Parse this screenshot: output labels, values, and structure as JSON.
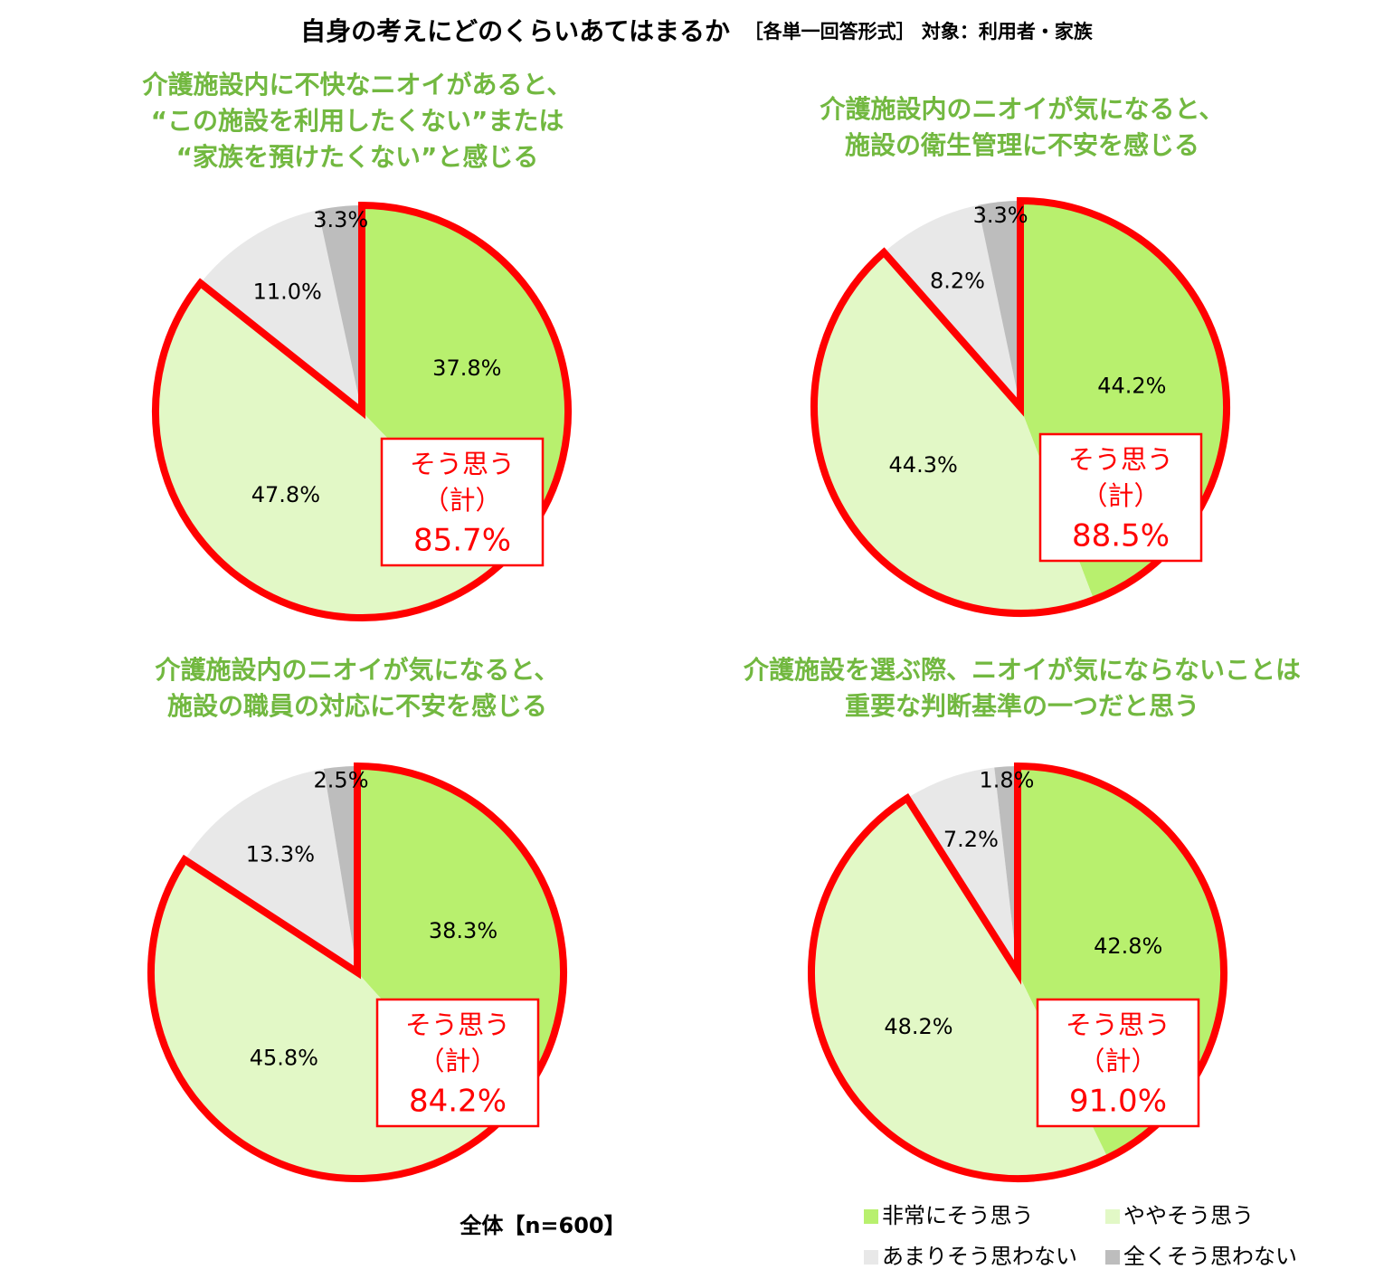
{
  "title": "自身の考えにどのくらいあてはまるか",
  "subtitle": "［各単一回答形式］ 対象：利用者・家族",
  "note": "全体【n=600】",
  "chart_data": [
    {
      "type": "pie",
      "title": [
        "介護施設内に不快なニオイがあると、",
        "“この施設を利用したくない”または",
        "“家族を預けたくない”と感じる"
      ],
      "categories": [
        "非常にそう思う",
        "ややそう思う",
        "あまりそう思わない",
        "全くそう思わない"
      ],
      "values": [
        37.8,
        47.8,
        11.0,
        3.3
      ],
      "value_labels": [
        "37.8%",
        "47.8%",
        "11.0%",
        "3.3%"
      ],
      "colors": [
        "#b8f06e",
        "#e2f8c6",
        "#e8e8e8",
        "#bdbdbd"
      ],
      "total_title": [
        "そう思う",
        "（計）"
      ],
      "total": 85.7,
      "total_label": "85.7%"
    },
    {
      "type": "pie",
      "title": [
        "介護施設内のニオイが気になると、",
        "施設の衛生管理に不安を感じる"
      ],
      "categories": [
        "非常にそう思う",
        "ややそう思う",
        "あまりそう思わない",
        "全くそう思わない"
      ],
      "values": [
        44.2,
        44.3,
        8.2,
        3.3
      ],
      "value_labels": [
        "44.2%",
        "44.3%",
        "8.2%",
        "3.3%"
      ],
      "colors": [
        "#b8f06e",
        "#e2f8c6",
        "#e8e8e8",
        "#bdbdbd"
      ],
      "total_title": [
        "そう思う",
        "（計）"
      ],
      "total": 88.5,
      "total_label": "88.5%"
    },
    {
      "type": "pie",
      "title": [
        "介護施設内のニオイが気になると、",
        "施設の職員の対応に不安を感じる"
      ],
      "categories": [
        "非常にそう思う",
        "ややそう思う",
        "あまりそう思わない",
        "全くそう思わない"
      ],
      "values": [
        38.3,
        45.8,
        13.3,
        2.5
      ],
      "value_labels": [
        "38.3%",
        "45.8%",
        "13.3%",
        "2.5%"
      ],
      "colors": [
        "#b8f06e",
        "#e2f8c6",
        "#e8e8e8",
        "#bdbdbd"
      ],
      "total_title": [
        "そう思う",
        "（計）"
      ],
      "total": 84.2,
      "total_label": "84.2%"
    },
    {
      "type": "pie",
      "title": [
        "介護施設を選ぶ際、ニオイが気にならないことは",
        "重要な判断基準の一つだと思う"
      ],
      "categories": [
        "非常にそう思う",
        "ややそう思う",
        "あまりそう思わない",
        "全くそう思わない"
      ],
      "values": [
        42.8,
        48.2,
        7.2,
        1.8
      ],
      "value_labels": [
        "42.8%",
        "48.2%",
        "7.2%",
        "1.8%"
      ],
      "colors": [
        "#b8f06e",
        "#e2f8c6",
        "#e8e8e8",
        "#bdbdbd"
      ],
      "total_title": [
        "そう思う",
        "（計）"
      ],
      "total": 91.0,
      "total_label": "91.0%"
    }
  ]
}
